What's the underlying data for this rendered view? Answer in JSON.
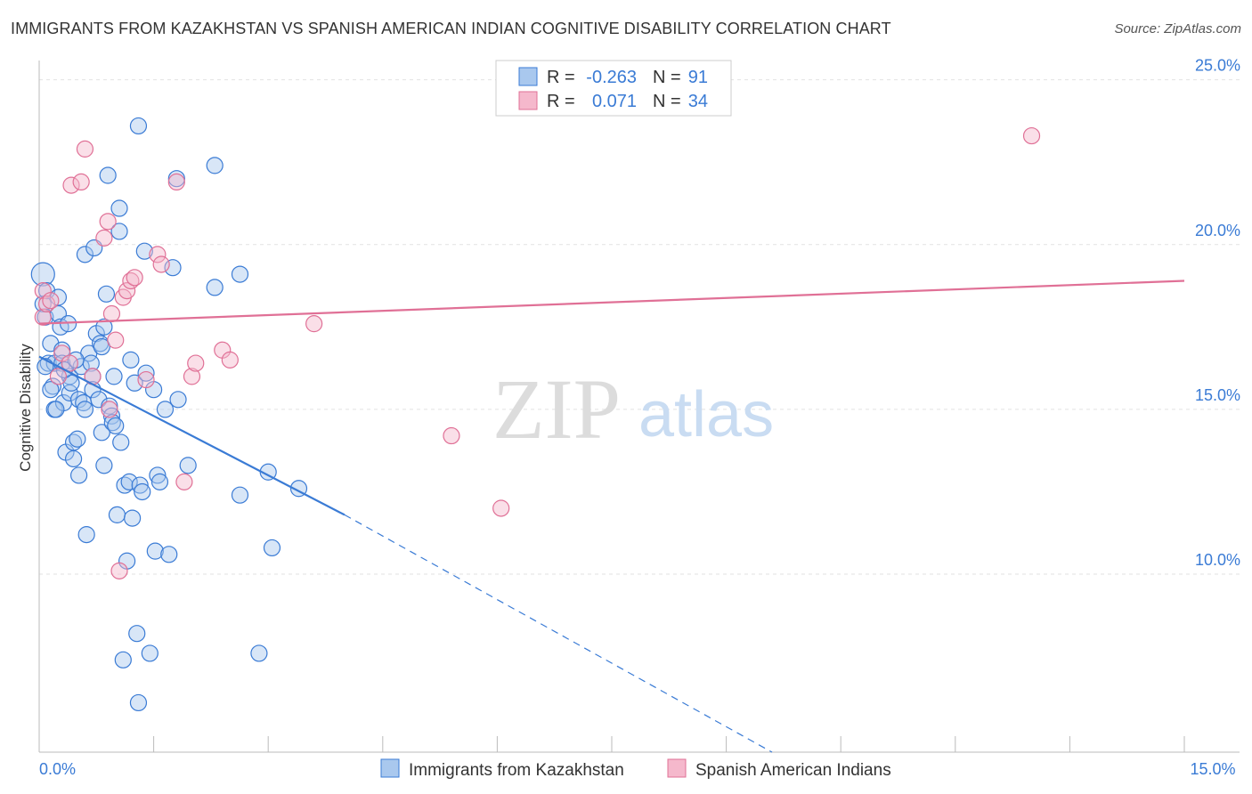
{
  "header": {
    "title": "IMMIGRANTS FROM KAZAKHSTAN VS SPANISH AMERICAN INDIAN COGNITIVE DISABILITY CORRELATION CHART",
    "source": "Source: ZipAtlas.com"
  },
  "watermark": {
    "zip": "ZIP",
    "atlas": "atlas"
  },
  "colors": {
    "blue": "#3a7bd5",
    "blue_fill": "#a9c8ee",
    "pink": "#e07096",
    "pink_fill": "#f5b8cc",
    "tick_text": "#3a7bd5"
  },
  "stats": {
    "rows": [
      {
        "r_label": "R =",
        "r_value": "-0.263",
        "n_label": "N =",
        "n_value": "91"
      },
      {
        "r_label": "R =",
        "r_value": "0.071",
        "n_label": "N =",
        "n_value": "34"
      }
    ]
  },
  "legend": {
    "series1": "Immigrants from Kazakhstan",
    "series2": "Spanish American Indians"
  },
  "chart_data": {
    "type": "scatter",
    "title": "IMMIGRANTS FROM KAZAKHSTAN VS SPANISH AMERICAN INDIAN COGNITIVE DISABILITY CORRELATION CHART",
    "xlabel": "",
    "ylabel": "Cognitive Disability",
    "xlim": [
      0,
      15
    ],
    "ylim": [
      4.6,
      25.8
    ],
    "x_tick_labels": [
      {
        "value": 0,
        "label": "0.0%"
      },
      {
        "value": 15,
        "label": "15.0%"
      }
    ],
    "y_tick_labels": [
      {
        "value": 10,
        "label": "10.0%"
      },
      {
        "value": 15,
        "label": "15.0%"
      },
      {
        "value": 20,
        "label": "20.0%"
      },
      {
        "value": 25,
        "label": "25.0%"
      }
    ],
    "x_minor_ticks": [
      0,
      1.5,
      3,
      4.5,
      6,
      7.5,
      9,
      10.5,
      12,
      13.5,
      15
    ],
    "grid": true,
    "legend_position": "bottom-center",
    "series": [
      {
        "name": "Immigrants from Kazakhstan",
        "color": "#3a7bd5",
        "R": -0.263,
        "N": 91,
        "trend": {
          "x": [
            0,
            4.0
          ],
          "y": [
            16.6,
            11.8
          ],
          "dashed_to": {
            "x": 9.6,
            "y": 4.6
          }
        },
        "points": [
          [
            0.05,
            19.1
          ],
          [
            0.05,
            18.2
          ],
          [
            0.08,
            17.8
          ],
          [
            0.1,
            18.6
          ],
          [
            0.12,
            16.4
          ],
          [
            0.15,
            17.0
          ],
          [
            0.18,
            15.7
          ],
          [
            0.2,
            16.4
          ],
          [
            0.2,
            15.0
          ],
          [
            0.25,
            18.4
          ],
          [
            0.25,
            17.9
          ],
          [
            0.28,
            17.5
          ],
          [
            0.3,
            16.8
          ],
          [
            0.3,
            16.4
          ],
          [
            0.32,
            15.2
          ],
          [
            0.35,
            13.7
          ],
          [
            0.38,
            17.6
          ],
          [
            0.4,
            16.0
          ],
          [
            0.4,
            15.5
          ],
          [
            0.42,
            15.8
          ],
          [
            0.45,
            13.5
          ],
          [
            0.45,
            14.0
          ],
          [
            0.5,
            14.1
          ],
          [
            0.52,
            15.3
          ],
          [
            0.52,
            13.0
          ],
          [
            0.55,
            16.3
          ],
          [
            0.58,
            15.2
          ],
          [
            0.6,
            19.7
          ],
          [
            0.62,
            11.2
          ],
          [
            0.65,
            16.7
          ],
          [
            0.68,
            16.4
          ],
          [
            0.7,
            16.0
          ],
          [
            0.7,
            15.6
          ],
          [
            0.72,
            19.9
          ],
          [
            0.75,
            17.3
          ],
          [
            0.78,
            15.3
          ],
          [
            0.8,
            17.0
          ],
          [
            0.82,
            16.9
          ],
          [
            0.82,
            14.3
          ],
          [
            0.85,
            17.5
          ],
          [
            0.85,
            13.3
          ],
          [
            0.88,
            18.5
          ],
          [
            0.9,
            22.1
          ],
          [
            0.92,
            15.1
          ],
          [
            0.95,
            14.8
          ],
          [
            0.96,
            14.6
          ],
          [
            0.98,
            16.0
          ],
          [
            1.0,
            14.5
          ],
          [
            1.02,
            11.8
          ],
          [
            1.05,
            21.1
          ],
          [
            1.05,
            20.4
          ],
          [
            1.07,
            14.0
          ],
          [
            1.1,
            7.4
          ],
          [
            1.12,
            12.7
          ],
          [
            1.15,
            10.4
          ],
          [
            1.18,
            12.8
          ],
          [
            1.2,
            16.5
          ],
          [
            1.22,
            11.7
          ],
          [
            1.25,
            15.8
          ],
          [
            1.28,
            8.2
          ],
          [
            1.3,
            23.6
          ],
          [
            1.3,
            6.1
          ],
          [
            1.32,
            12.7
          ],
          [
            1.35,
            12.5
          ],
          [
            1.38,
            19.8
          ],
          [
            1.4,
            16.1
          ],
          [
            1.45,
            7.6
          ],
          [
            1.5,
            15.6
          ],
          [
            1.52,
            10.7
          ],
          [
            1.55,
            13.0
          ],
          [
            1.58,
            12.8
          ],
          [
            1.65,
            15.0
          ],
          [
            1.7,
            10.6
          ],
          [
            1.75,
            19.3
          ],
          [
            1.8,
            22.0
          ],
          [
            1.82,
            15.3
          ],
          [
            1.95,
            13.3
          ],
          [
            2.3,
            22.4
          ],
          [
            2.3,
            18.7
          ],
          [
            2.63,
            12.4
          ],
          [
            2.63,
            19.1
          ],
          [
            2.88,
            7.6
          ],
          [
            3.0,
            13.1
          ],
          [
            3.05,
            10.8
          ],
          [
            3.4,
            12.6
          ],
          [
            0.08,
            16.3
          ],
          [
            0.15,
            15.6
          ],
          [
            0.22,
            15.0
          ],
          [
            0.33,
            16.2
          ],
          [
            0.48,
            16.5
          ],
          [
            0.6,
            15.0
          ]
        ]
      },
      {
        "name": "Spanish American Indians",
        "color": "#e07096",
        "R": 0.071,
        "N": 34,
        "trend": {
          "x": [
            0,
            15
          ],
          "y": [
            17.6,
            18.9
          ]
        },
        "points": [
          [
            0.05,
            18.6
          ],
          [
            0.05,
            17.8
          ],
          [
            0.1,
            18.2
          ],
          [
            0.15,
            18.3
          ],
          [
            0.25,
            16.0
          ],
          [
            0.3,
            16.7
          ],
          [
            0.4,
            16.4
          ],
          [
            0.42,
            21.8
          ],
          [
            0.55,
            21.9
          ],
          [
            0.6,
            22.9
          ],
          [
            0.7,
            16.0
          ],
          [
            0.85,
            20.2
          ],
          [
            0.9,
            20.7
          ],
          [
            0.92,
            15.0
          ],
          [
            0.95,
            17.9
          ],
          [
            1.0,
            17.1
          ],
          [
            1.05,
            10.1
          ],
          [
            1.1,
            18.4
          ],
          [
            1.15,
            18.6
          ],
          [
            1.2,
            18.9
          ],
          [
            1.25,
            19.0
          ],
          [
            1.4,
            15.9
          ],
          [
            1.55,
            19.7
          ],
          [
            1.6,
            19.4
          ],
          [
            1.8,
            21.9
          ],
          [
            1.9,
            12.8
          ],
          [
            2.0,
            16.0
          ],
          [
            2.05,
            16.4
          ],
          [
            2.4,
            16.8
          ],
          [
            2.5,
            16.5
          ],
          [
            3.6,
            17.6
          ],
          [
            5.4,
            14.2
          ],
          [
            6.05,
            12.0
          ],
          [
            13.0,
            23.3
          ]
        ]
      }
    ]
  }
}
